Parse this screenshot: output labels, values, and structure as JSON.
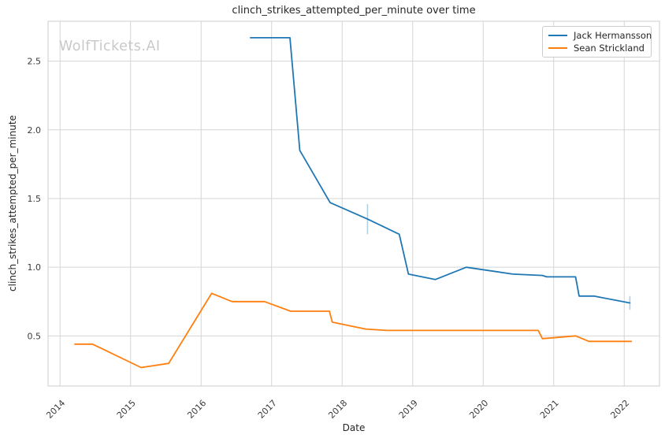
{
  "watermark": {
    "text": "WolfTickets.AI",
    "color": "#c9c9c9"
  },
  "chart_data": {
    "type": "line",
    "title": "clinch_strikes_attempted_per_minute over time",
    "xlabel": "Date",
    "ylabel": "clinch_strikes_attempted_per_minute",
    "grid": true,
    "legend_position": "upper right",
    "xlim": [
      2013.83,
      2022.5
    ],
    "ylim": [
      0.135,
      2.79
    ],
    "x_ticks": [
      {
        "v": 2014,
        "label": "2014"
      },
      {
        "v": 2015,
        "label": "2015"
      },
      {
        "v": 2016,
        "label": "2016"
      },
      {
        "v": 2017,
        "label": "2017"
      },
      {
        "v": 2018,
        "label": "2018"
      },
      {
        "v": 2019,
        "label": "2019"
      },
      {
        "v": 2020,
        "label": "2020"
      },
      {
        "v": 2021,
        "label": "2021"
      },
      {
        "v": 2022,
        "label": "2022"
      }
    ],
    "y_ticks": [
      {
        "v": 0.5,
        "label": "0.5"
      },
      {
        "v": 1.0,
        "label": "1.0"
      },
      {
        "v": 1.5,
        "label": "1.5"
      },
      {
        "v": 2.0,
        "label": "2.0"
      },
      {
        "v": 2.5,
        "label": "2.5"
      }
    ],
    "series": [
      {
        "name": "Jack Hermansson",
        "color": "#1f77b4",
        "points": [
          [
            2016.7,
            2.67
          ],
          [
            2017.26,
            2.67
          ],
          [
            2017.4,
            1.85
          ],
          [
            2017.83,
            1.47
          ],
          [
            2018.36,
            1.35
          ],
          [
            2018.81,
            1.24
          ],
          [
            2018.94,
            0.95
          ],
          [
            2019.32,
            0.91
          ],
          [
            2019.76,
            1.0
          ],
          [
            2020.42,
            0.95
          ],
          [
            2020.84,
            0.94
          ],
          [
            2020.9,
            0.93
          ],
          [
            2021.31,
            0.93
          ],
          [
            2021.36,
            0.79
          ],
          [
            2021.57,
            0.79
          ],
          [
            2022.08,
            0.74
          ]
        ],
        "error_bars": [
          {
            "x": 2018.36,
            "y": 1.35,
            "yerr": 0.11
          },
          {
            "x": 2022.08,
            "y": 0.74,
            "yerr": 0.05
          }
        ]
      },
      {
        "name": "Sean Strickland",
        "color": "#ff7f0e",
        "points": [
          [
            2014.21,
            0.44
          ],
          [
            2014.46,
            0.44
          ],
          [
            2015.15,
            0.27
          ],
          [
            2015.54,
            0.3
          ],
          [
            2016.15,
            0.81
          ],
          [
            2016.44,
            0.75
          ],
          [
            2016.9,
            0.75
          ],
          [
            2017.27,
            0.68
          ],
          [
            2017.82,
            0.68
          ],
          [
            2017.86,
            0.6
          ],
          [
            2018.33,
            0.55
          ],
          [
            2018.63,
            0.54
          ],
          [
            2020.78,
            0.54
          ],
          [
            2020.84,
            0.48
          ],
          [
            2021.31,
            0.5
          ],
          [
            2021.5,
            0.46
          ],
          [
            2022.1,
            0.46
          ]
        ],
        "error_bars": []
      }
    ],
    "colors": {
      "grid": "#d5d5d5",
      "spine": "#cccccc",
      "text": "#262626",
      "background": "#ffffff"
    }
  }
}
